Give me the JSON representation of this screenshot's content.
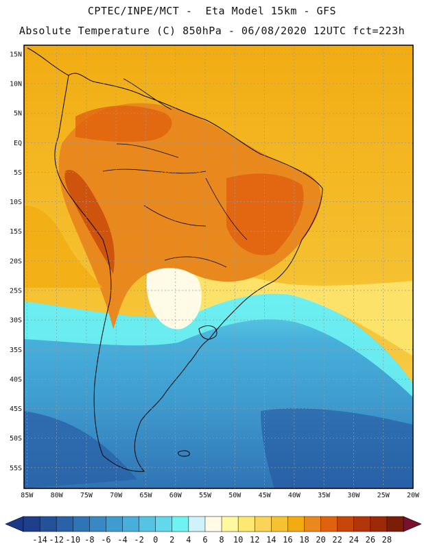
{
  "header": {
    "title_line1": "CPTEC/INPE/MCT -  Eta Model 15km - GFS",
    "title_line2": "Absolute Temperature (C) 850hPa - 06/08/2020 12UTC fct=223h"
  },
  "map": {
    "lat_labels": [
      "15N",
      "10N",
      "5N",
      "EQ",
      "5S",
      "10S",
      "15S",
      "20S",
      "25S",
      "30S",
      "35S",
      "40S",
      "45S",
      "50S",
      "55S"
    ],
    "lat_values": [
      15,
      10,
      5,
      0,
      -5,
      -10,
      -15,
      -20,
      -25,
      -30,
      -35,
      -40,
      -45,
      -50,
      -55
    ],
    "lon_labels": [
      "85W",
      "80W",
      "75W",
      "70W",
      "65W",
      "60W",
      "55W",
      "50W",
      "45W",
      "40W",
      "35W",
      "30W",
      "25W",
      "20W"
    ],
    "lon_values": [
      -85,
      -80,
      -75,
      -70,
      -65,
      -60,
      -55,
      -50,
      -45,
      -40,
      -35,
      -30,
      -25,
      -20
    ],
    "extent": {
      "lon_min": -85.5,
      "lon_max": -20,
      "lat_min": -58.5,
      "lat_max": 16.5
    }
  },
  "colorbar": {
    "labels": [
      "-14",
      "-12",
      "-10",
      "-8",
      "-6",
      "-4",
      "-2",
      "0",
      "2",
      "4",
      "6",
      "8",
      "10",
      "12",
      "14",
      "16",
      "18",
      "20",
      "22",
      "24",
      "26",
      "28"
    ],
    "colors": [
      "#1f3e8c",
      "#23519a",
      "#2a62a8",
      "#2f74b5",
      "#3788c3",
      "#3f9ccf",
      "#47afda",
      "#55c4e4",
      "#62d8ea",
      "#6ef2f2",
      "#d0f2fa",
      "#fffbe6",
      "#fdf9a0",
      "#fde872",
      "#f9d458",
      "#f5c232",
      "#f2ac12",
      "#e9891d",
      "#e0620e",
      "#c7470b",
      "#b3360a",
      "#9c2a08",
      "#7a1e08"
    ],
    "under_color": "#1a3a88",
    "over_color": "#7a1030"
  }
}
